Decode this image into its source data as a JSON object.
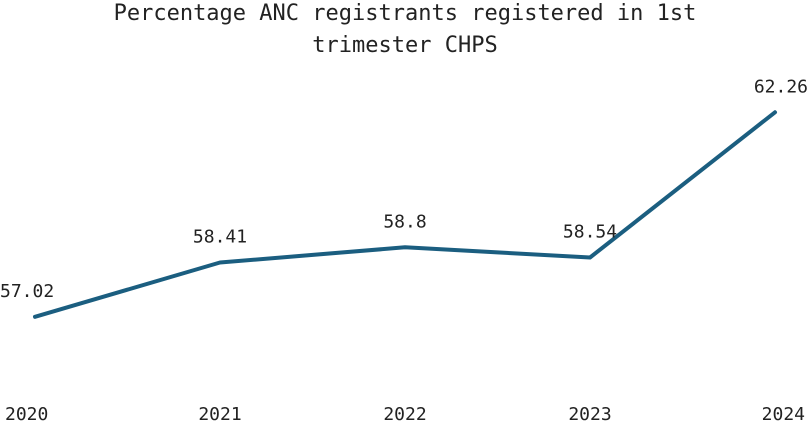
{
  "chart_data": {
    "type": "line",
    "title_lines": [
      "Percentage ANC registrants registered in 1st",
      "trimester CHPS"
    ],
    "categories": [
      "2020",
      "2021",
      "2022",
      "2023",
      "2024"
    ],
    "series": [
      {
        "values": [
          57.02,
          58.41,
          58.8,
          58.54,
          62.26
        ],
        "labels": [
          "57.02",
          "58.41",
          "58.8",
          "58.54",
          "62.26"
        ]
      }
    ],
    "ylim": [
      55.4,
      63.6
    ],
    "grid": false,
    "legend": "none",
    "line_color": "#1b5e80"
  }
}
